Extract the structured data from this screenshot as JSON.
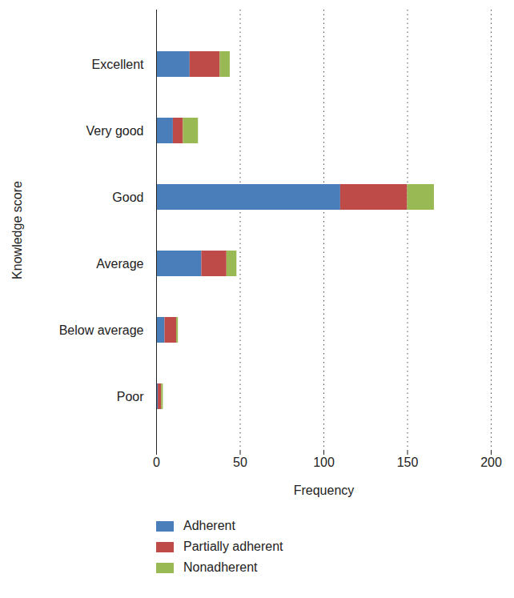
{
  "chart_data": {
    "type": "bar",
    "orientation": "horizontal",
    "stacked": true,
    "xlabel": "Frequency",
    "ylabel": "Knowledge score",
    "categories": [
      "Excellent",
      "Very good",
      "Good",
      "Average",
      "Below average",
      "Poor"
    ],
    "series": [
      {
        "name": "Adherent",
        "color": "#4a7ebb",
        "values": [
          20,
          10,
          110,
          27,
          5,
          1
        ]
      },
      {
        "name": "Partially adherent",
        "color": "#be4b48",
        "values": [
          18,
          6,
          40,
          15,
          7,
          2
        ]
      },
      {
        "name": "Nonadherent",
        "color": "#98b954",
        "values": [
          6,
          9,
          16,
          6,
          1,
          1
        ]
      }
    ],
    "xlim": [
      0,
      200
    ],
    "xticks": [
      0,
      50,
      100,
      150,
      200
    ],
    "grid": true,
    "legend": "bottom"
  }
}
